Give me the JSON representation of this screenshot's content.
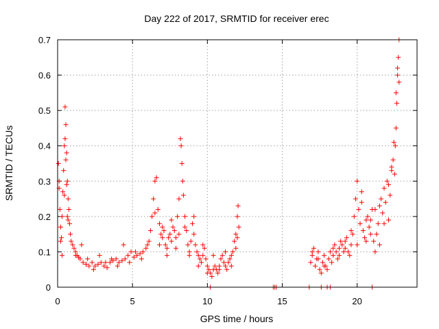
{
  "chart_data": {
    "type": "scatter",
    "title": "Day 222 of 2017, SRMTID for receiver erec",
    "xlabel": "GPS time / hours",
    "ylabel": "SRMTID / TECUs",
    "xlim": [
      0,
      24
    ],
    "ylim": [
      0,
      0.7
    ],
    "grid": true,
    "marker": "+",
    "color": "#ff0000",
    "x_ticks": [
      0,
      5,
      10,
      15,
      20
    ],
    "x_tick_labels": [
      "0",
      "5",
      "10",
      "15",
      "20"
    ],
    "y_ticks": [
      0,
      0.1,
      0.2,
      0.3,
      0.4,
      0.5,
      0.6,
      0.7
    ],
    "y_tick_labels": [
      "0",
      "0.1",
      "0.2",
      "0.3",
      "0.4",
      "0.5",
      "0.6",
      "0.7"
    ],
    "series": [
      {
        "name": "SRMTID",
        "x": [
          0.05,
          0.1,
          0.15,
          0.2,
          0.25,
          0.3,
          0.35,
          0.4,
          0.45,
          0.5,
          0.55,
          0.6,
          0.65,
          0.7,
          0.75,
          0.8,
          0.85,
          0.9,
          1.0,
          1.1,
          1.2,
          1.3,
          1.4,
          1.5,
          1.7,
          1.9,
          2.1,
          2.3,
          2.5,
          2.7,
          2.9,
          3.1,
          3.3,
          3.5,
          3.7,
          3.9,
          4.1,
          4.3,
          4.5,
          4.7,
          4.9,
          5.1,
          5.3,
          5.5,
          5.7,
          5.9,
          6.1,
          6.3,
          6.4,
          6.5,
          6.6,
          6.7,
          6.8,
          6.9,
          7.0,
          7.1,
          7.2,
          7.3,
          7.4,
          7.5,
          7.6,
          7.7,
          7.8,
          7.9,
          8.0,
          8.1,
          8.2,
          8.3,
          8.4,
          8.5,
          8.6,
          8.7,
          8.8,
          8.9,
          9.0,
          9.1,
          9.2,
          9.3,
          9.4,
          9.5,
          9.6,
          9.7,
          9.8,
          9.9,
          10.0,
          10.1,
          10.2,
          10.3,
          10.4,
          10.5,
          10.6,
          10.7,
          10.8,
          10.9,
          11.0,
          11.1,
          11.2,
          11.3,
          11.4,
          11.5,
          11.6,
          11.7,
          11.8,
          11.9,
          12.0,
          12.05,
          12.1,
          10.2,
          14.4,
          14.5,
          14.6,
          16.8,
          16.9,
          17.0,
          17.1,
          17.2,
          17.3,
          17.4,
          17.5,
          17.6,
          17.7,
          17.8,
          17.9,
          18.0,
          18.1,
          18.2,
          18.3,
          18.4,
          18.5,
          18.6,
          18.7,
          18.8,
          18.9,
          19.0,
          19.1,
          19.2,
          19.3,
          19.4,
          19.5,
          19.6,
          19.7,
          19.8,
          19.9,
          20.0,
          20.1,
          20.2,
          20.3,
          20.4,
          20.5,
          20.6,
          20.7,
          20.8,
          20.9,
          21.0,
          21.1,
          21.2,
          21.3,
          21.4,
          21.5,
          21.6,
          21.7,
          21.8,
          21.9,
          22.0,
          22.1,
          22.2,
          22.3,
          22.4,
          22.5,
          22.55,
          22.6,
          22.65,
          22.7,
          22.75,
          22.8,
          17.6,
          18.0,
          18.2,
          21.0,
          0.1,
          0.2,
          0.3,
          0.45,
          0.5,
          0.55,
          0.6,
          0.65,
          0.7,
          1.2,
          1.6,
          2.0,
          2.4,
          2.8,
          3.2,
          3.6,
          4.0,
          4.4,
          4.8,
          5.2,
          5.6,
          6.0,
          6.2,
          6.5,
          6.8,
          7.0,
          7.3,
          7.6,
          7.9,
          8.1,
          8.25,
          8.35,
          8.5,
          8.8,
          9.1,
          9.4,
          9.7,
          10.0,
          10.4,
          10.8,
          11.2,
          11.6,
          11.9,
          12.0,
          17.0,
          17.4,
          17.8,
          18.4,
          18.8,
          19.2,
          19.6,
          20.0,
          20.3,
          20.6,
          20.9,
          21.2,
          21.5,
          21.8,
          22.1,
          22.3,
          22.45,
          22.6,
          22.7,
          22.8
        ],
        "y": [
          0.35,
          0.3,
          0.22,
          0.17,
          0.14,
          0.2,
          0.27,
          0.33,
          0.4,
          0.51,
          0.46,
          0.38,
          0.3,
          0.25,
          0.22,
          0.18,
          0.15,
          0.13,
          0.12,
          0.11,
          0.1,
          0.09,
          0.085,
          0.08,
          0.07,
          0.065,
          0.06,
          0.07,
          0.06,
          0.065,
          0.07,
          0.06,
          0.055,
          0.07,
          0.075,
          0.08,
          0.07,
          0.075,
          0.08,
          0.09,
          0.1,
          0.085,
          0.09,
          0.095,
          0.1,
          0.11,
          0.13,
          0.2,
          0.25,
          0.3,
          0.31,
          0.22,
          0.18,
          0.15,
          0.14,
          0.16,
          0.12,
          0.11,
          0.14,
          0.15,
          0.13,
          0.17,
          0.16,
          0.14,
          0.2,
          0.15,
          0.42,
          0.35,
          0.26,
          0.2,
          0.16,
          0.12,
          0.1,
          0.13,
          0.18,
          0.15,
          0.12,
          0.1,
          0.09,
          0.08,
          0.07,
          0.09,
          0.11,
          0.08,
          0.06,
          0.05,
          0.04,
          0.03,
          0.05,
          0.06,
          0.05,
          0.04,
          0.06,
          0.08,
          0.09,
          0.07,
          0.06,
          0.05,
          0.07,
          0.08,
          0.09,
          0.1,
          0.13,
          0.15,
          0.2,
          0.23,
          0.17,
          0.0,
          0.0,
          0.0,
          0.0,
          0.0,
          0.07,
          0.09,
          0.11,
          0.06,
          0.08,
          0.1,
          0.05,
          0.04,
          0.07,
          0.09,
          0.06,
          0.05,
          0.08,
          0.1,
          0.07,
          0.09,
          0.12,
          0.1,
          0.08,
          0.11,
          0.13,
          0.12,
          0.1,
          0.11,
          0.14,
          0.1,
          0.09,
          0.12,
          0.15,
          0.2,
          0.25,
          0.3,
          0.22,
          0.18,
          0.24,
          0.16,
          0.14,
          0.13,
          0.2,
          0.17,
          0.19,
          0.22,
          0.13,
          0.1,
          0.15,
          0.18,
          0.23,
          0.25,
          0.21,
          0.28,
          0.24,
          0.3,
          0.19,
          0.26,
          0.33,
          0.36,
          0.32,
          0.4,
          0.45,
          0.52,
          0.6,
          0.65,
          0.7,
          0.0,
          0.0,
          0.0,
          0.0,
          0.28,
          0.13,
          0.09,
          0.26,
          0.42,
          0.36,
          0.29,
          0.2,
          0.19,
          0.09,
          0.12,
          0.08,
          0.05,
          0.09,
          0.07,
          0.08,
          0.06,
          0.12,
          0.07,
          0.1,
          0.08,
          0.12,
          0.16,
          0.21,
          0.12,
          0.17,
          0.09,
          0.19,
          0.11,
          0.25,
          0.4,
          0.3,
          0.17,
          0.09,
          0.2,
          0.06,
          0.12,
          0.04,
          0.09,
          0.05,
          0.1,
          0.06,
          0.11,
          0.14,
          0.1,
          0.08,
          0.06,
          0.11,
          0.09,
          0.13,
          0.16,
          0.12,
          0.27,
          0.19,
          0.15,
          0.22,
          0.12,
          0.18,
          0.29,
          0.34,
          0.41,
          0.55,
          0.62,
          0.58
        ]
      }
    ]
  }
}
